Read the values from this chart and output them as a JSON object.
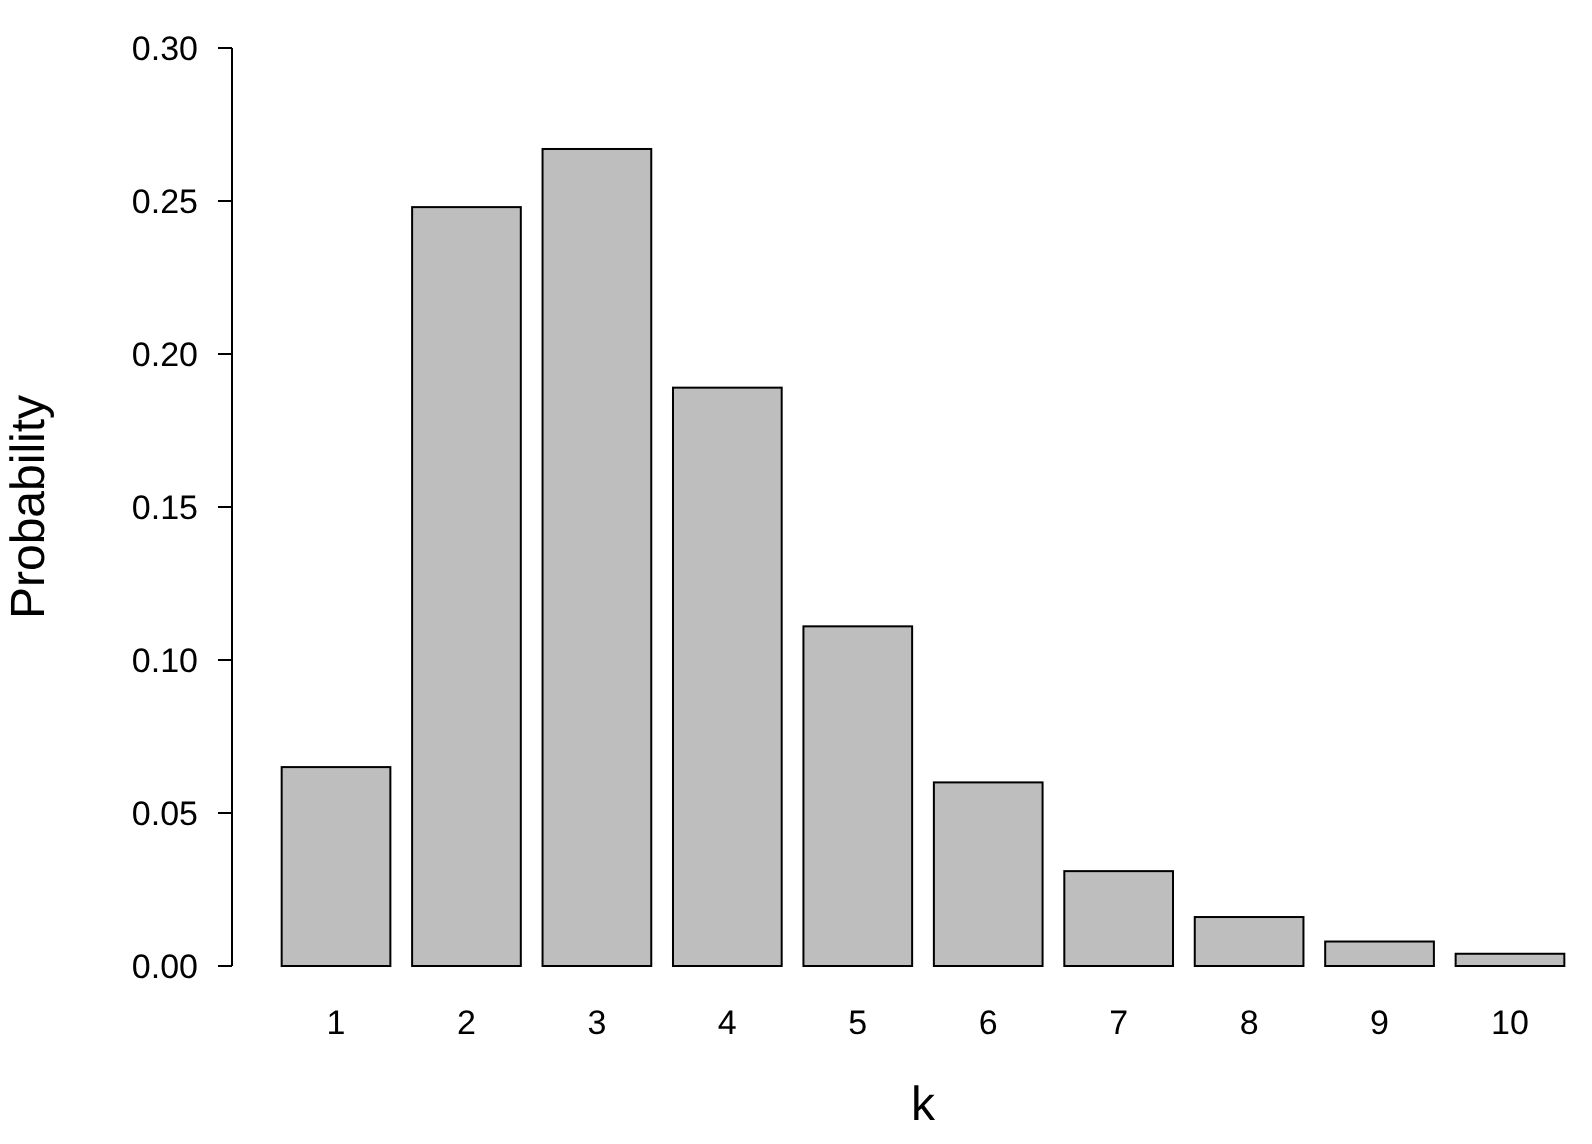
{
  "chart_data": {
    "type": "bar",
    "xlabel": "k",
    "ylabel": "Probability",
    "categories": [
      "1",
      "2",
      "3",
      "4",
      "5",
      "6",
      "7",
      "8",
      "9",
      "10"
    ],
    "values": [
      0.065,
      0.248,
      0.267,
      0.189,
      0.111,
      0.06,
      0.031,
      0.016,
      0.008,
      0.004
    ],
    "color": "#bebebe",
    "ylim": [
      0,
      0.3
    ],
    "yticks": [
      {
        "value": 0,
        "label": "0.00"
      },
      {
        "value": 0.05,
        "label": "0.05"
      },
      {
        "value": 0.1,
        "label": "0.10"
      },
      {
        "value": 0.15,
        "label": "0.15"
      },
      {
        "value": 0.2,
        "label": "0.20"
      },
      {
        "value": 0.25,
        "label": "0.25"
      },
      {
        "value": 0.3,
        "label": "0.30"
      }
    ],
    "grid": false
  }
}
